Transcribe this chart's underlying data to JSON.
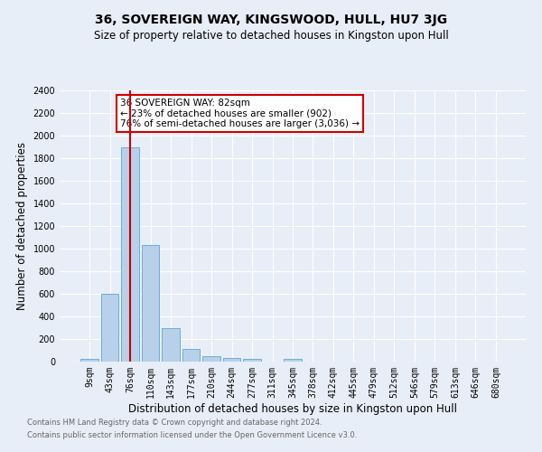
{
  "title": "36, SOVEREIGN WAY, KINGSWOOD, HULL, HU7 3JG",
  "subtitle": "Size of property relative to detached houses in Kingston upon Hull",
  "xlabel": "Distribution of detached houses by size in Kingston upon Hull",
  "ylabel": "Number of detached properties",
  "footnote1": "Contains HM Land Registry data © Crown copyright and database right 2024.",
  "footnote2": "Contains public sector information licensed under the Open Government Licence v3.0.",
  "bin_labels": [
    "9sqm",
    "43sqm",
    "76sqm",
    "110sqm",
    "143sqm",
    "177sqm",
    "210sqm",
    "244sqm",
    "277sqm",
    "311sqm",
    "345sqm",
    "378sqm",
    "412sqm",
    "445sqm",
    "479sqm",
    "512sqm",
    "546sqm",
    "579sqm",
    "613sqm",
    "646sqm",
    "680sqm"
  ],
  "bar_values": [
    25,
    600,
    1900,
    1030,
    295,
    115,
    50,
    30,
    25,
    0,
    25,
    0,
    0,
    0,
    0,
    0,
    0,
    0,
    0,
    0,
    0
  ],
  "bar_color": "#b8d0ea",
  "bar_edge_color": "#6baed6",
  "vline_x": 2,
  "vline_color": "#cc0000",
  "ylim": [
    0,
    2400
  ],
  "yticks": [
    0,
    200,
    400,
    600,
    800,
    1000,
    1200,
    1400,
    1600,
    1800,
    2000,
    2200,
    2400
  ],
  "annotation_text": "36 SOVEREIGN WAY: 82sqm\n← 23% of detached houses are smaller (902)\n76% of semi-detached houses are larger (3,036) →",
  "annotation_box_color": "#ffffff",
  "annotation_box_edge": "#cc0000",
  "bg_color": "#e8eef8",
  "plot_bg_color": "#e8eef8",
  "grid_color": "#ffffff",
  "title_fontsize": 10,
  "subtitle_fontsize": 8.5,
  "tick_fontsize": 7,
  "ylabel_fontsize": 8.5,
  "xlabel_fontsize": 8.5,
  "annotation_fontsize": 7.5,
  "footnote_fontsize": 6,
  "footnote_color": "#666666"
}
